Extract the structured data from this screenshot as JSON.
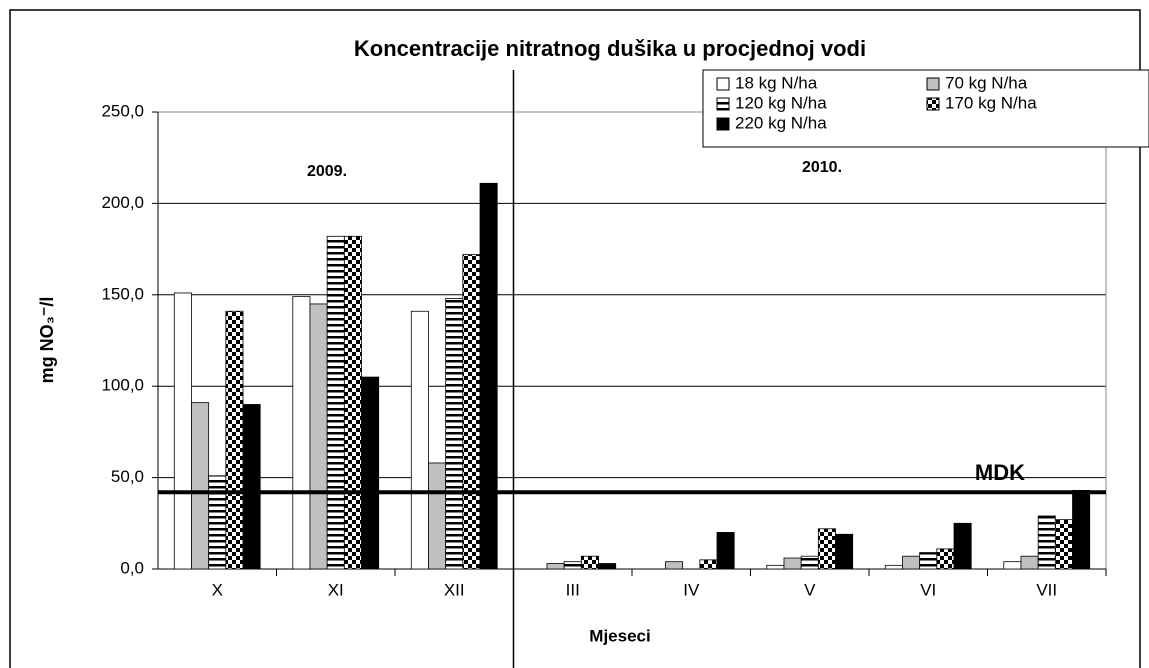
{
  "chart_data": {
    "type": "bar",
    "title": "Koncentracije nitratnog dušika u procjednoj vodi",
    "x_label": "Mjeseci",
    "y_label": "mg NO₃⁻/l",
    "categories": [
      "X",
      "XI",
      "XII",
      "III",
      "IV",
      "V",
      "VI",
      "VII"
    ],
    "series": [
      {
        "name": "18 kg N/ha",
        "color": "#ffffff",
        "values": [
          151,
          149,
          141,
          0,
          0,
          2,
          2,
          4
        ]
      },
      {
        "name": "70 kg N/ha",
        "color": "#c0c0c0",
        "values": [
          91,
          145,
          58,
          3,
          4,
          6,
          7,
          7
        ]
      },
      {
        "name": "120 kg N/ha",
        "color": "#000000",
        "pattern": "stripes",
        "values": [
          51,
          182,
          148,
          4,
          0,
          7,
          9,
          29
        ]
      },
      {
        "name": "170 kg N/ha",
        "color": "#000000",
        "pattern": "checker",
        "values": [
          141,
          182,
          172,
          7,
          5,
          22,
          11,
          27
        ]
      },
      {
        "name": "220 kg N/ha",
        "color": "#000000",
        "values": [
          90,
          105,
          211,
          3,
          20,
          19,
          25,
          43
        ]
      }
    ],
    "ylim": [
      0,
      250
    ],
    "yticks": [
      {
        "value": 0,
        "label": "0,0"
      },
      {
        "value": 50,
        "label": "50,0"
      },
      {
        "value": 100,
        "label": "100,0"
      },
      {
        "value": 150,
        "label": "150,0"
      },
      {
        "value": 200,
        "label": "200,0"
      },
      {
        "value": 250,
        "label": "250,0"
      }
    ],
    "grid": true,
    "legend": "top-right",
    "reference_line": {
      "value": 42,
      "label": "MDK"
    },
    "annotations": [
      "2009.",
      "2010."
    ]
  }
}
